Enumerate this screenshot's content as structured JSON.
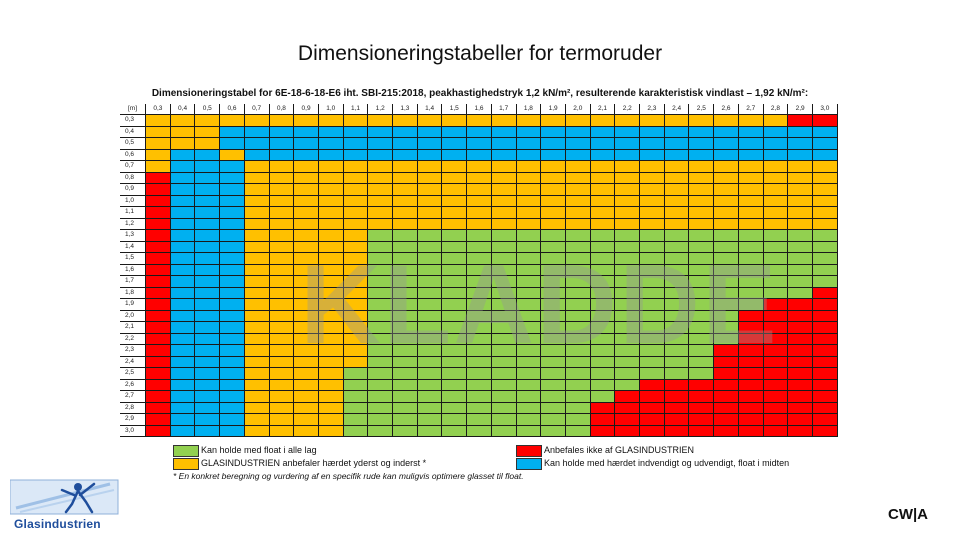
{
  "slide": {
    "title": "Dimensioneringstabeller for termoruder",
    "corner_mark": "CW|A"
  },
  "table": {
    "caption": "Dimensioneringstabel for 6E-18-6-18-E6 iht. SBI-215:2018, peakhastighedstryk 1,2 kN/m², resulterende karakteristisk vindlast – 1,92 kN/m²:",
    "corner_label": "[m]",
    "col_headers": [
      "0,3",
      "0,4",
      "0,5",
      "0,6",
      "0,7",
      "0,8",
      "0,9",
      "1,0",
      "1,1",
      "1,2",
      "1,3",
      "1,4",
      "1,5",
      "1,6",
      "1,7",
      "1,8",
      "1,9",
      "2,0",
      "2,1",
      "2,2",
      "2,3",
      "2,4",
      "2,5",
      "2,6",
      "2,7",
      "2,8",
      "2,9",
      "3,0"
    ],
    "row_headers": [
      "0,3",
      "0,4",
      "0,5",
      "0,6",
      "0,7",
      "0,8",
      "0,9",
      "1,0",
      "1,1",
      "1,2",
      "1,3",
      "1,4",
      "1,5",
      "1,6",
      "1,7",
      "1,8",
      "1,9",
      "2,0",
      "2,1",
      "2,2",
      "2,3",
      "2,4",
      "2,5",
      "2,6",
      "2,7",
      "2,8",
      "2,9",
      "3,0"
    ],
    "rows": [
      "YYYYYYYYYYYYYYYYYYYYYYYYYYRR",
      "YYYBBBBBBBBBBBBBBBBBBBBBBBBB",
      "YYYBBBBBBBBBBBBBBBBBBBBBBBBB",
      "YBBYBBBBBBBBBBBBBBBBBBBBBBBB",
      "YBBBYYYYYYYYYYYYYYYYYYYYYYYY",
      "RBBBYYYYYYYYYYYYYYYYYYYYYYYY",
      "RBBBYYYYYYYYYYYYYYYYYYYYYYYY",
      "RBBBYYYYYYYYYYYYYYYYYYYYYYYY",
      "RBBBYYYYYYYYYYYYYYYYYYYYYYYY",
      "RBBBYYYYYYYYYYYYYYYYYYYYYYYY",
      "RBBBYYYYYGGGGGGGGGGGGGGGGGGG",
      "RBBBYYYYYGGGGGGGGGGGGGGGGGGG",
      "RBBBYYYYYGGGGGGGGGGGGGGGGGGG",
      "RBBBYYYYYGGGGGGGGGGGGGGGGGGG",
      "RBBBYYYYYGGGGGGGGGGGGGGGGGGG",
      "RBBBYYYYYGGGGGGGGGGGGGGGGGGR",
      "RBBBYYYYYGGGGGGGGGGGGGGGGRRR",
      "RBBBYYYYYGGGGGGGGGGGGGGGRRRR",
      "RBBBYYYYYGGGGGGGGGGGGGGGRRRR",
      "RBBBYYYYYGGGGGGGGGGGGGGGRRRR",
      "RBBBYYYYYGGGGGGGGGGGGGGRRRRR",
      "RBBBYYYYYGGGGGGGGGGGGGGRRRRR",
      "RBBBYYYYGGGGGGGGGGGGGGGRRRRR",
      "RBBBYYYYGGGGGGGGGGGGRRRRRRRR",
      "RBBBYYYYGGGGGGGGGGGRRRRRRRRR",
      "RBBBYYYYGGGGGGGGGGRRRRRRRRRR",
      "RBBBYYYYGGGGGGGGGGRRRRRRRRRR",
      "RBBBYYYYGGGGGGGGGGRRRRRRRRRR"
    ],
    "watermark": "KLADDE"
  },
  "legend": {
    "green_label": "Kan holde med float i alle lag",
    "yellow_label": "GLASINDUSTRIEN anbefaler hærdet yderst og inderst *",
    "red_label": "Anbefales ikke af GLASINDUSTRIEN",
    "blue_label": "Kan holde med hærdet indvendigt og udvendigt, float i midten",
    "footnote": "* En konkret beregning og vurdering af en specifik rude kan muligvis optimere glasset til float."
  },
  "colors": {
    "yellow": "#FFC000",
    "green": "#92D050",
    "blue": "#00B0F0",
    "red": "#FF0000"
  },
  "logo": {
    "text": "Glasindustrien",
    "icon": "glass-figure-logo-icon"
  }
}
